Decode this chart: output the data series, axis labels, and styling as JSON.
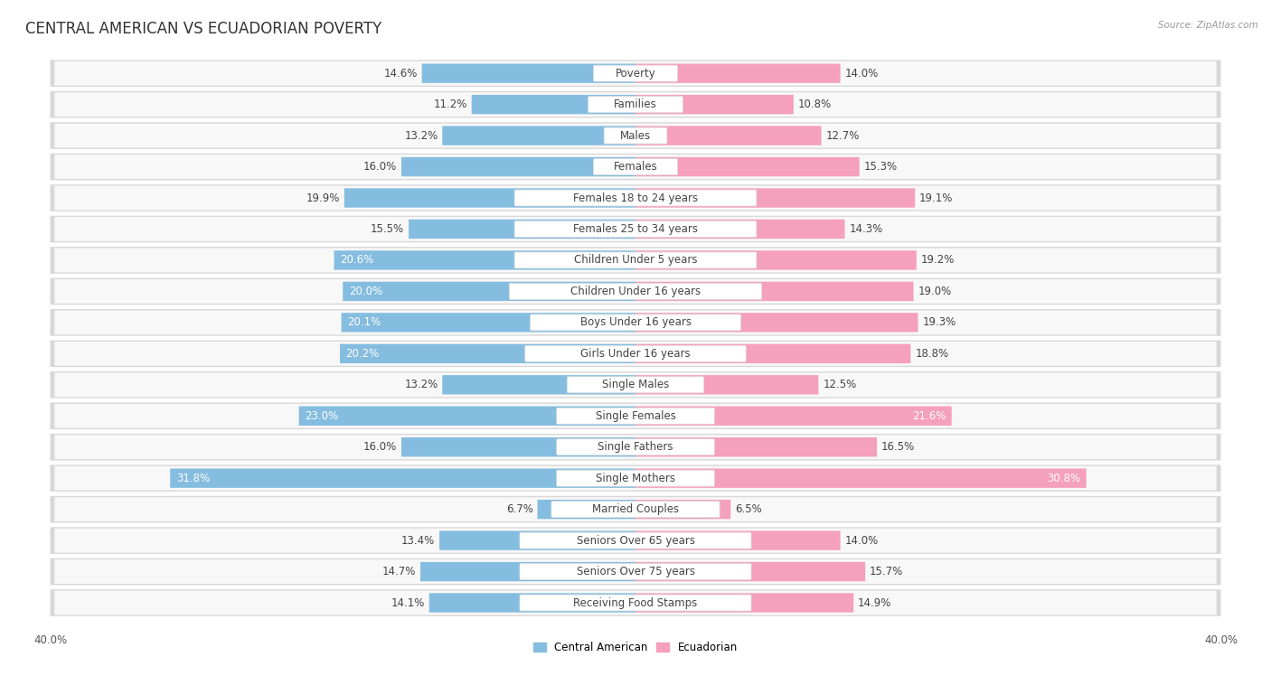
{
  "title": "CENTRAL AMERICAN VS ECUADORIAN POVERTY",
  "source": "Source: ZipAtlas.com",
  "categories": [
    "Poverty",
    "Families",
    "Males",
    "Females",
    "Females 18 to 24 years",
    "Females 25 to 34 years",
    "Children Under 5 years",
    "Children Under 16 years",
    "Boys Under 16 years",
    "Girls Under 16 years",
    "Single Males",
    "Single Females",
    "Single Fathers",
    "Single Mothers",
    "Married Couples",
    "Seniors Over 65 years",
    "Seniors Over 75 years",
    "Receiving Food Stamps"
  ],
  "central_american": [
    14.6,
    11.2,
    13.2,
    16.0,
    19.9,
    15.5,
    20.6,
    20.0,
    20.1,
    20.2,
    13.2,
    23.0,
    16.0,
    31.8,
    6.7,
    13.4,
    14.7,
    14.1
  ],
  "ecuadorian": [
    14.0,
    10.8,
    12.7,
    15.3,
    19.1,
    14.3,
    19.2,
    19.0,
    19.3,
    18.8,
    12.5,
    21.6,
    16.5,
    30.8,
    6.5,
    14.0,
    15.7,
    14.9
  ],
  "left_color": "#85bde0",
  "right_color": "#f5a0bc",
  "left_label": "Central American",
  "right_label": "Ecuadorian",
  "axis_max": 40.0,
  "bg_color": "#ffffff",
  "row_bg": "#e8e8e8",
  "row_inner_bg": "#f5f5f5",
  "title_fontsize": 12,
  "cat_fontsize": 8.5,
  "value_fontsize": 8.5
}
